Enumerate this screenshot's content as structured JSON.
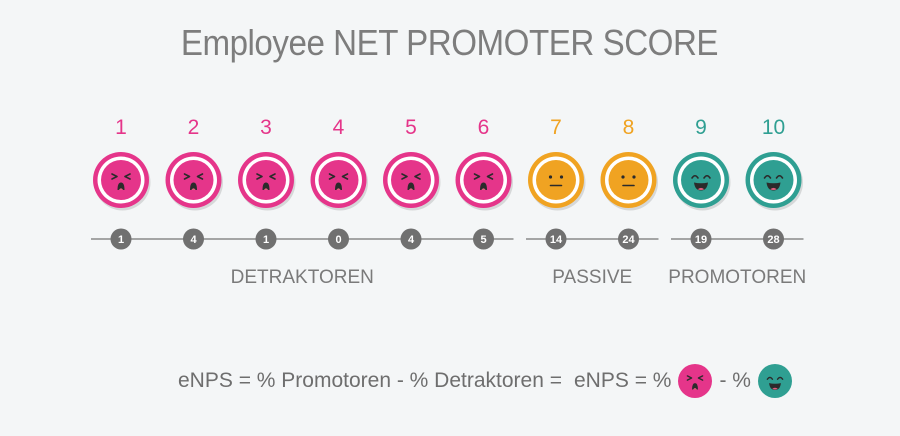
{
  "title": "Employee NET PROMOTER SCORE",
  "colors": {
    "detractor": "#e5358a",
    "passive": "#f0a322",
    "promoter": "#2f9f92",
    "line": "#8a8a8a",
    "badge": "#707070",
    "text": "#7a7a7a"
  },
  "chart_data": {
    "type": "table",
    "title": "Employee NET PROMOTER SCORE",
    "scores": [
      1,
      2,
      3,
      4,
      5,
      6,
      7,
      8,
      9,
      10
    ],
    "counts": [
      1,
      4,
      1,
      0,
      4,
      5,
      14,
      24,
      19,
      28
    ],
    "categories": [
      {
        "label": "DETRAKTOREN",
        "scores": [
          1,
          2,
          3,
          4,
          5,
          6
        ],
        "color": "#e5358a",
        "face": "frustrated-face-icon"
      },
      {
        "label": "PASSIVE",
        "scores": [
          7,
          8
        ],
        "color": "#f0a322",
        "face": "neutral-face-icon"
      },
      {
        "label": "PROMOTOREN",
        "scores": [
          9,
          10
        ],
        "color": "#2f9f92",
        "face": "happy-face-icon"
      }
    ]
  },
  "formula": {
    "left": "eNPS = % Promotoren - % Detraktoren =",
    "right_start": "eNPS = %",
    "right_mid": "- %",
    "icons": [
      "frustrated-face-icon",
      "happy-face-icon"
    ]
  }
}
